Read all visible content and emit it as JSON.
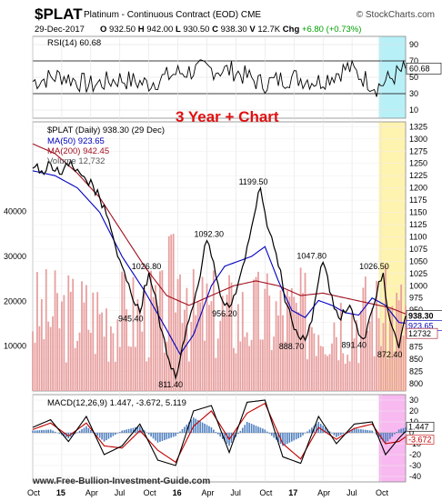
{
  "header": {
    "symbol": "$PLAT",
    "description": "Platinum - Continuous Contract (EOD)",
    "exchange": "CME",
    "brand": "© StockCharts.com",
    "date": "29-Dec-2017",
    "open_label": "O",
    "open": "932.50",
    "high_label": "H",
    "high": "942.00",
    "low_label": "L",
    "low": "930.50",
    "close_label": "C",
    "close": "938.30",
    "volume_label": "V",
    "volume": "12.7K",
    "change_label": "Chg",
    "change": "+6.80 (+0.73%)"
  },
  "annotation": "3 Year + Chart",
  "footer": "www.Free-Bullion-Investment-Guide.com",
  "colors": {
    "price": "#000000",
    "ma50": "#0000c0",
    "ma200": "#a01020",
    "volume": "#e8a0a0",
    "highlight_yellow": "#fff3b0",
    "highlight_cyan": "#b8f0f8",
    "highlight_pink": "#f8b8f0",
    "macd": "#000000",
    "signal": "#c00000",
    "histogram": "#5080c0"
  },
  "chart_data": [
    {
      "type": "line",
      "panel": "rsi",
      "legend": "RSI(14) 60.68",
      "current_label": "60.68",
      "y_ticks": [
        10,
        30,
        50,
        70,
        90
      ],
      "ylim": [
        0,
        100
      ],
      "levels": [
        30,
        70
      ],
      "x": [
        "Oct 2014",
        "Jan 2015",
        "Apr 2015",
        "Jul 2015",
        "Oct 2015",
        "Jan 2016",
        "Apr 2016",
        "Jul 2016",
        "Oct 2016",
        "Jan 2017",
        "Apr 2017",
        "Jul 2017",
        "Oct 2017",
        "Dec 2017"
      ],
      "values": [
        45,
        52,
        40,
        48,
        42,
        55,
        60,
        58,
        42,
        50,
        45,
        62,
        38,
        60.68
      ]
    },
    {
      "type": "line",
      "panel": "price",
      "legend": [
        {
          "name": "$PLAT (Daily) 938.30 (29 Dec)",
          "color": "#000000"
        },
        {
          "name": "MA(50) 923.65",
          "color": "#0000c0"
        },
        {
          "name": "MA(200) 942.45",
          "color": "#a01020"
        },
        {
          "name": "Volume 12,732",
          "color": "#e8a0a0"
        }
      ],
      "x_ticks": [
        "Oct",
        "15",
        "Apr",
        "Jul",
        "Oct",
        "16",
        "Apr",
        "Jul",
        "Oct",
        "17",
        "Apr",
        "Jul",
        "Oct"
      ],
      "y_ticks": [
        800,
        825,
        850,
        875,
        900,
        925,
        950,
        975,
        1000,
        1025,
        1050,
        1075,
        1100,
        1125,
        1150,
        1175,
        1200,
        1225,
        1250,
        1275,
        1300,
        1325
      ],
      "ylim": [
        785,
        1335
      ],
      "volume_ticks": [
        10000,
        20000,
        30000,
        40000
      ],
      "volume_labels": [
        "10000",
        "20000",
        "30000",
        "40000"
      ],
      "right_labels": [
        "938.30",
        "923.65",
        "12732"
      ],
      "peak_labels": [
        {
          "text": "1199.50",
          "value": 1199.5
        },
        {
          "text": "1092.30",
          "value": 1092.3
        },
        {
          "text": "1026.80",
          "value": 1026.8
        },
        {
          "text": "1047.80",
          "value": 1047.8
        },
        {
          "text": "1026.50",
          "value": 1026.5
        },
        {
          "text": "945.40",
          "value": 945.4
        },
        {
          "text": "956.20",
          "value": 956.2
        },
        {
          "text": "888.70",
          "value": 888.7
        },
        {
          "text": "891.40",
          "value": 891.4
        },
        {
          "text": "872.40",
          "value": 872.4
        },
        {
          "text": "811.40",
          "value": 811.4
        }
      ],
      "series": [
        {
          "name": "$PLAT",
          "x": [
            0,
            4,
            8,
            12,
            16,
            20,
            24,
            27,
            30,
            32,
            34,
            36,
            38,
            40,
            42,
            44,
            46,
            48,
            50,
            52,
            54,
            56,
            58,
            60,
            62,
            64,
            66,
            68,
            70,
            72,
            74,
            76,
            78,
            80,
            82,
            84,
            86,
            88,
            90,
            92,
            94,
            96,
            98,
            100,
            102,
            104,
            106,
            108,
            110,
            112,
            114,
            116,
            118,
            120,
            122,
            124,
            126,
            128,
            130,
            132,
            134,
            136,
            138,
            140,
            142,
            144,
            146,
            148,
            150,
            152,
            154,
            156,
            157
          ],
          "values": [
            1240,
            1235,
            1250,
            1228,
            1245,
            1238,
            1215,
            1205,
            1180,
            1165,
            1135,
            1100,
            1060,
            1040,
            1010,
            985,
            960,
            945,
            1000,
            1026.8,
            990,
            950,
            905,
            860,
            830,
            811.4,
            850,
            890,
            930,
            960,
            1000,
            1050,
            1092.3,
            1060,
            1020,
            980,
            960,
            956.2,
            980,
            1005,
            1040,
            1080,
            1120,
            1160,
            1199.5,
            1150,
            1110,
            1080,
            1040,
            1000,
            960,
            930,
            910,
            890,
            888.7,
            920,
            960,
            1010,
            1047.8,
            1020,
            980,
            950,
            930,
            945,
            960,
            930,
            900,
            891.4,
            920,
            950,
            980,
            1010,
            1026.5
          ]
        },
        {
          "name": "$PLAT late",
          "x": [
            157,
            158,
            159,
            160,
            161,
            162,
            163,
            164,
            165,
            166,
            167
          ],
          "values": [
            1026.5,
            980,
            950,
            930,
            915,
            905,
            890,
            872.4,
            900,
            920,
            938.3
          ]
        },
        {
          "name": "MA(50)",
          "x": [
            0,
            10,
            20,
            30,
            40,
            50,
            60,
            66,
            72,
            80,
            86,
            92,
            98,
            104,
            110,
            116,
            122,
            128,
            134,
            140,
            146,
            152,
            158,
            164,
            167
          ],
          "values": [
            1235,
            1225,
            1200,
            1150,
            1060,
            990,
            910,
            860,
            900,
            1000,
            1040,
            1050,
            1060,
            1080,
            1010,
            950,
            935,
            970,
            960,
            945,
            940,
            975,
            960,
            925,
            923.65
          ]
        },
        {
          "name": "MA(200)",
          "x": [
            0,
            10,
            20,
            30,
            40,
            50,
            60,
            70,
            80,
            90,
            100,
            110,
            120,
            130,
            140,
            150,
            160,
            167
          ],
          "values": [
            1290,
            1270,
            1230,
            1180,
            1110,
            1040,
            980,
            960,
            980,
            1000,
            1010,
            1000,
            980,
            985,
            975,
            965,
            955,
            942.45
          ]
        }
      ]
    },
    {
      "type": "line",
      "panel": "macd",
      "legend": "MACD(12,26,9) 1.447, -3.672, 5.119",
      "right_labels": [
        "1.447",
        "-3.672"
      ],
      "y_ticks": [
        -40,
        -30,
        -20,
        -10,
        0,
        10,
        20,
        30
      ],
      "ylim": [
        -45,
        35
      ],
      "x_ticks": [
        "Oct",
        "15",
        "Apr",
        "Jul",
        "Oct",
        "16",
        "Apr",
        "Jul",
        "Oct",
        "17",
        "Apr",
        "Jul",
        "Oct"
      ],
      "series": [
        {
          "name": "MACD",
          "x": [
            0,
            8,
            16,
            24,
            32,
            40,
            48,
            56,
            64,
            72,
            80,
            88,
            96,
            104,
            112,
            120,
            128,
            136,
            144,
            152,
            158,
            164,
            167
          ],
          "values": [
            5,
            12,
            -8,
            15,
            -20,
            -12,
            8,
            -25,
            -30,
            20,
            25,
            -18,
            28,
            30,
            -22,
            -28,
            15,
            -10,
            8,
            10,
            -20,
            -5,
            1.447
          ]
        },
        {
          "name": "Signal",
          "x": [
            0,
            8,
            16,
            24,
            32,
            40,
            48,
            56,
            64,
            72,
            80,
            88,
            96,
            104,
            112,
            120,
            128,
            136,
            144,
            152,
            158,
            164,
            167
          ],
          "values": [
            3,
            9,
            -3,
            9,
            -12,
            -14,
            2,
            -16,
            -27,
            6,
            20,
            -6,
            18,
            27,
            -10,
            -24,
            5,
            -6,
            4,
            8,
            -10,
            -8,
            -3.672
          ]
        }
      ]
    }
  ]
}
